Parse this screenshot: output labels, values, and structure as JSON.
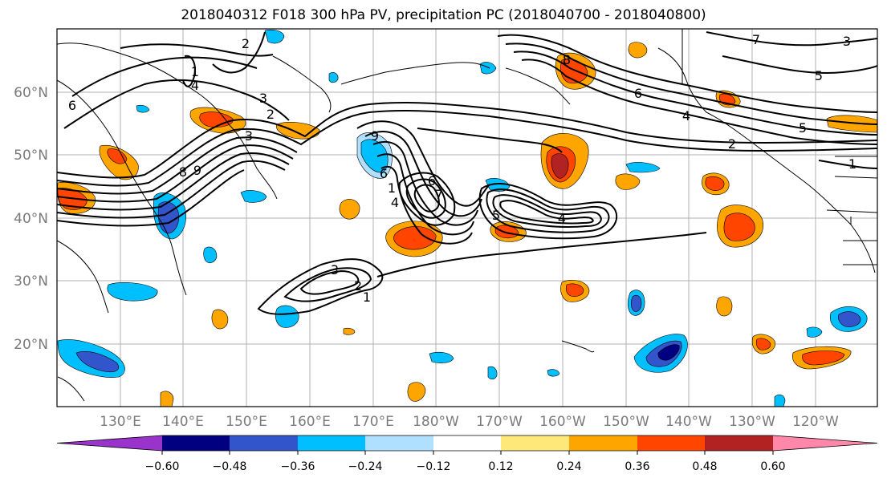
{
  "title": "2018040312 F018 300 hPa PV, precipitation PC (2018040700 - 2018040800)",
  "map": {
    "lat_ticks": [
      "60°N",
      "50°N",
      "40°N",
      "30°N",
      "20°N"
    ],
    "lon_ticks": [
      "130°E",
      "140°E",
      "150°E",
      "160°E",
      "170°E",
      "180°W",
      "170°W",
      "160°W",
      "150°W",
      "140°W",
      "130°W",
      "120°W"
    ],
    "contour_labels": [
      "2",
      "1",
      "4",
      "3",
      "2",
      "6",
      "3",
      "6",
      "5",
      "4",
      "2",
      "1",
      "7",
      "3",
      "5",
      "6",
      "9",
      "8",
      "4",
      "7",
      "6",
      "5",
      "1",
      "4",
      "3",
      "2",
      "1",
      "8",
      "9"
    ]
  },
  "colorbar": {
    "colors": [
      "#9933cc",
      "#000080",
      "#3355cc",
      "#00bfff",
      "#b0e0ff",
      "#ffffff",
      "#ffe87a",
      "#ffa500",
      "#ff4500",
      "#b22222",
      "#ff88aa"
    ],
    "tick_labels": [
      "−0.60",
      "−0.48",
      "−0.36",
      "−0.24",
      "−0.12",
      "0.12",
      "0.24",
      "0.36",
      "0.48",
      "0.60"
    ]
  }
}
